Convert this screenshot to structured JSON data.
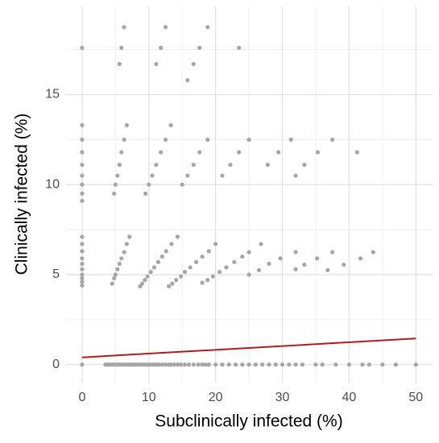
{
  "chart_data": {
    "type": "scatter",
    "x_label": "Subclinically infected (%)",
    "y_label": "Clinically infected (%)",
    "xlim": [
      -2.4,
      52.5
    ],
    "ylim": [
      -1,
      19.9
    ],
    "xticks": [
      0,
      10,
      20,
      30,
      40,
      50
    ],
    "yticks": [
      0,
      5,
      10,
      15
    ],
    "x_minor_ticks": [
      5,
      15,
      25,
      35,
      45
    ],
    "y_minor_ticks": [
      2.5,
      7.5,
      12.5,
      17.5
    ],
    "grid": true,
    "points": {
      "color": "#a6a6a6",
      "x": [
        0,
        3.5,
        3.8,
        4,
        4.3,
        4.5,
        4.8,
        5,
        5.3,
        5.6,
        5.9,
        6.2,
        6.5,
        6.8,
        7.1,
        7.4,
        7.7,
        8,
        8.3,
        8.6,
        9,
        9.3,
        9.6,
        10,
        10.3,
        10.7,
        11.1,
        11.5,
        12,
        12.5,
        13,
        13.3,
        13.8,
        14.3,
        14.8,
        15.4,
        16,
        16.7,
        17.4,
        18,
        18.5,
        19,
        20,
        21,
        22,
        23,
        24,
        25,
        26,
        27,
        28,
        29,
        30,
        31,
        32,
        33,
        35,
        36,
        38,
        40,
        42,
        43,
        45,
        47,
        50,
        0,
        0,
        0,
        0,
        0,
        0,
        0,
        0,
        0,
        0,
        0,
        0,
        0,
        0,
        0,
        0,
        0,
        0,
        0,
        4.5,
        4.8,
        5,
        5.3,
        5.6,
        5.9,
        6.3,
        6.7,
        7.1,
        8.7,
        9,
        9.4,
        9.8,
        10.3,
        10.8,
        11.4,
        12,
        12.6,
        13.4,
        14.3,
        13,
        13.5,
        14.1,
        14.8,
        15.4,
        16.2,
        17.1,
        18,
        19,
        20,
        18,
        18.8,
        19.6,
        20.6,
        21.6,
        22.8,
        24,
        25,
        26.8,
        25,
        26.5,
        28,
        29.7,
        32,
        32,
        33.3,
        35.2,
        37.5,
        36.8,
        39.2,
        41.7,
        43.6,
        4.8,
        5,
        5.3,
        5.6,
        5.9,
        6.3,
        6.7,
        9.5,
        10,
        10.5,
        11.1,
        11.8,
        12.5,
        13.3,
        15,
        15.8,
        16.7,
        17.6,
        18.8,
        21,
        22.2,
        23.5,
        25,
        27.8,
        29.4,
        31.3,
        32,
        33.3,
        35.3,
        37.5,
        41.2,
        5.6,
        5.9,
        6.3,
        11.1,
        11.8,
        12.5,
        15.8,
        16.7,
        17.6,
        18.8,
        23.5
      ],
      "y": [
        0,
        0,
        0,
        0,
        0,
        0,
        0,
        0,
        0,
        0,
        0,
        0,
        0,
        0,
        0,
        0,
        0,
        0,
        0,
        0,
        0,
        0,
        0,
        0,
        0,
        0,
        0,
        0,
        0,
        0,
        0,
        0,
        0,
        0,
        0,
        0,
        0,
        0,
        0,
        0,
        0,
        0,
        0,
        0,
        0,
        0,
        0,
        0,
        0,
        0,
        0,
        0,
        0,
        0,
        0,
        0,
        0,
        0,
        0,
        0,
        0,
        0,
        0,
        0,
        0,
        4.4,
        4.6,
        4.8,
        5,
        5.3,
        5.6,
        5.9,
        6.3,
        6.7,
        7.1,
        9.1,
        9.5,
        10,
        10.5,
        11.1,
        11.8,
        12.5,
        13.3,
        17.6,
        4.5,
        4.8,
        5,
        5.3,
        5.6,
        5.9,
        6.25,
        6.7,
        7.1,
        4.35,
        4.5,
        4.7,
        4.9,
        5.15,
        5.4,
        5.7,
        6,
        6.3,
        6.7,
        7.1,
        4.35,
        4.5,
        4.7,
        4.9,
        5.15,
        5.4,
        5.7,
        6,
        6.3,
        6.7,
        4.55,
        4.7,
        4.9,
        5.15,
        5.4,
        5.7,
        6,
        6.25,
        6.7,
        5,
        5.25,
        5.6,
        5.9,
        6.25,
        5.3,
        5.55,
        5.9,
        6.25,
        5.25,
        5.55,
        5.9,
        6.25,
        9.5,
        10,
        10.5,
        11.1,
        11.8,
        12.5,
        13.3,
        9.5,
        10,
        10.5,
        11.1,
        11.8,
        12.5,
        13.3,
        10,
        10.5,
        11.1,
        11.8,
        12.5,
        10.5,
        11.1,
        11.8,
        12.5,
        11.1,
        11.8,
        12.5,
        10.5,
        11.1,
        11.8,
        12.5,
        11.8,
        16.7,
        17.6,
        18.75,
        16.7,
        17.6,
        18.75,
        15.8,
        16.7,
        17.6,
        18.75,
        17.6
      ]
    },
    "fit_line": {
      "color": "#b01c1c",
      "x": [
        0,
        50
      ],
      "values": [
        0.4,
        1.45
      ]
    }
  }
}
